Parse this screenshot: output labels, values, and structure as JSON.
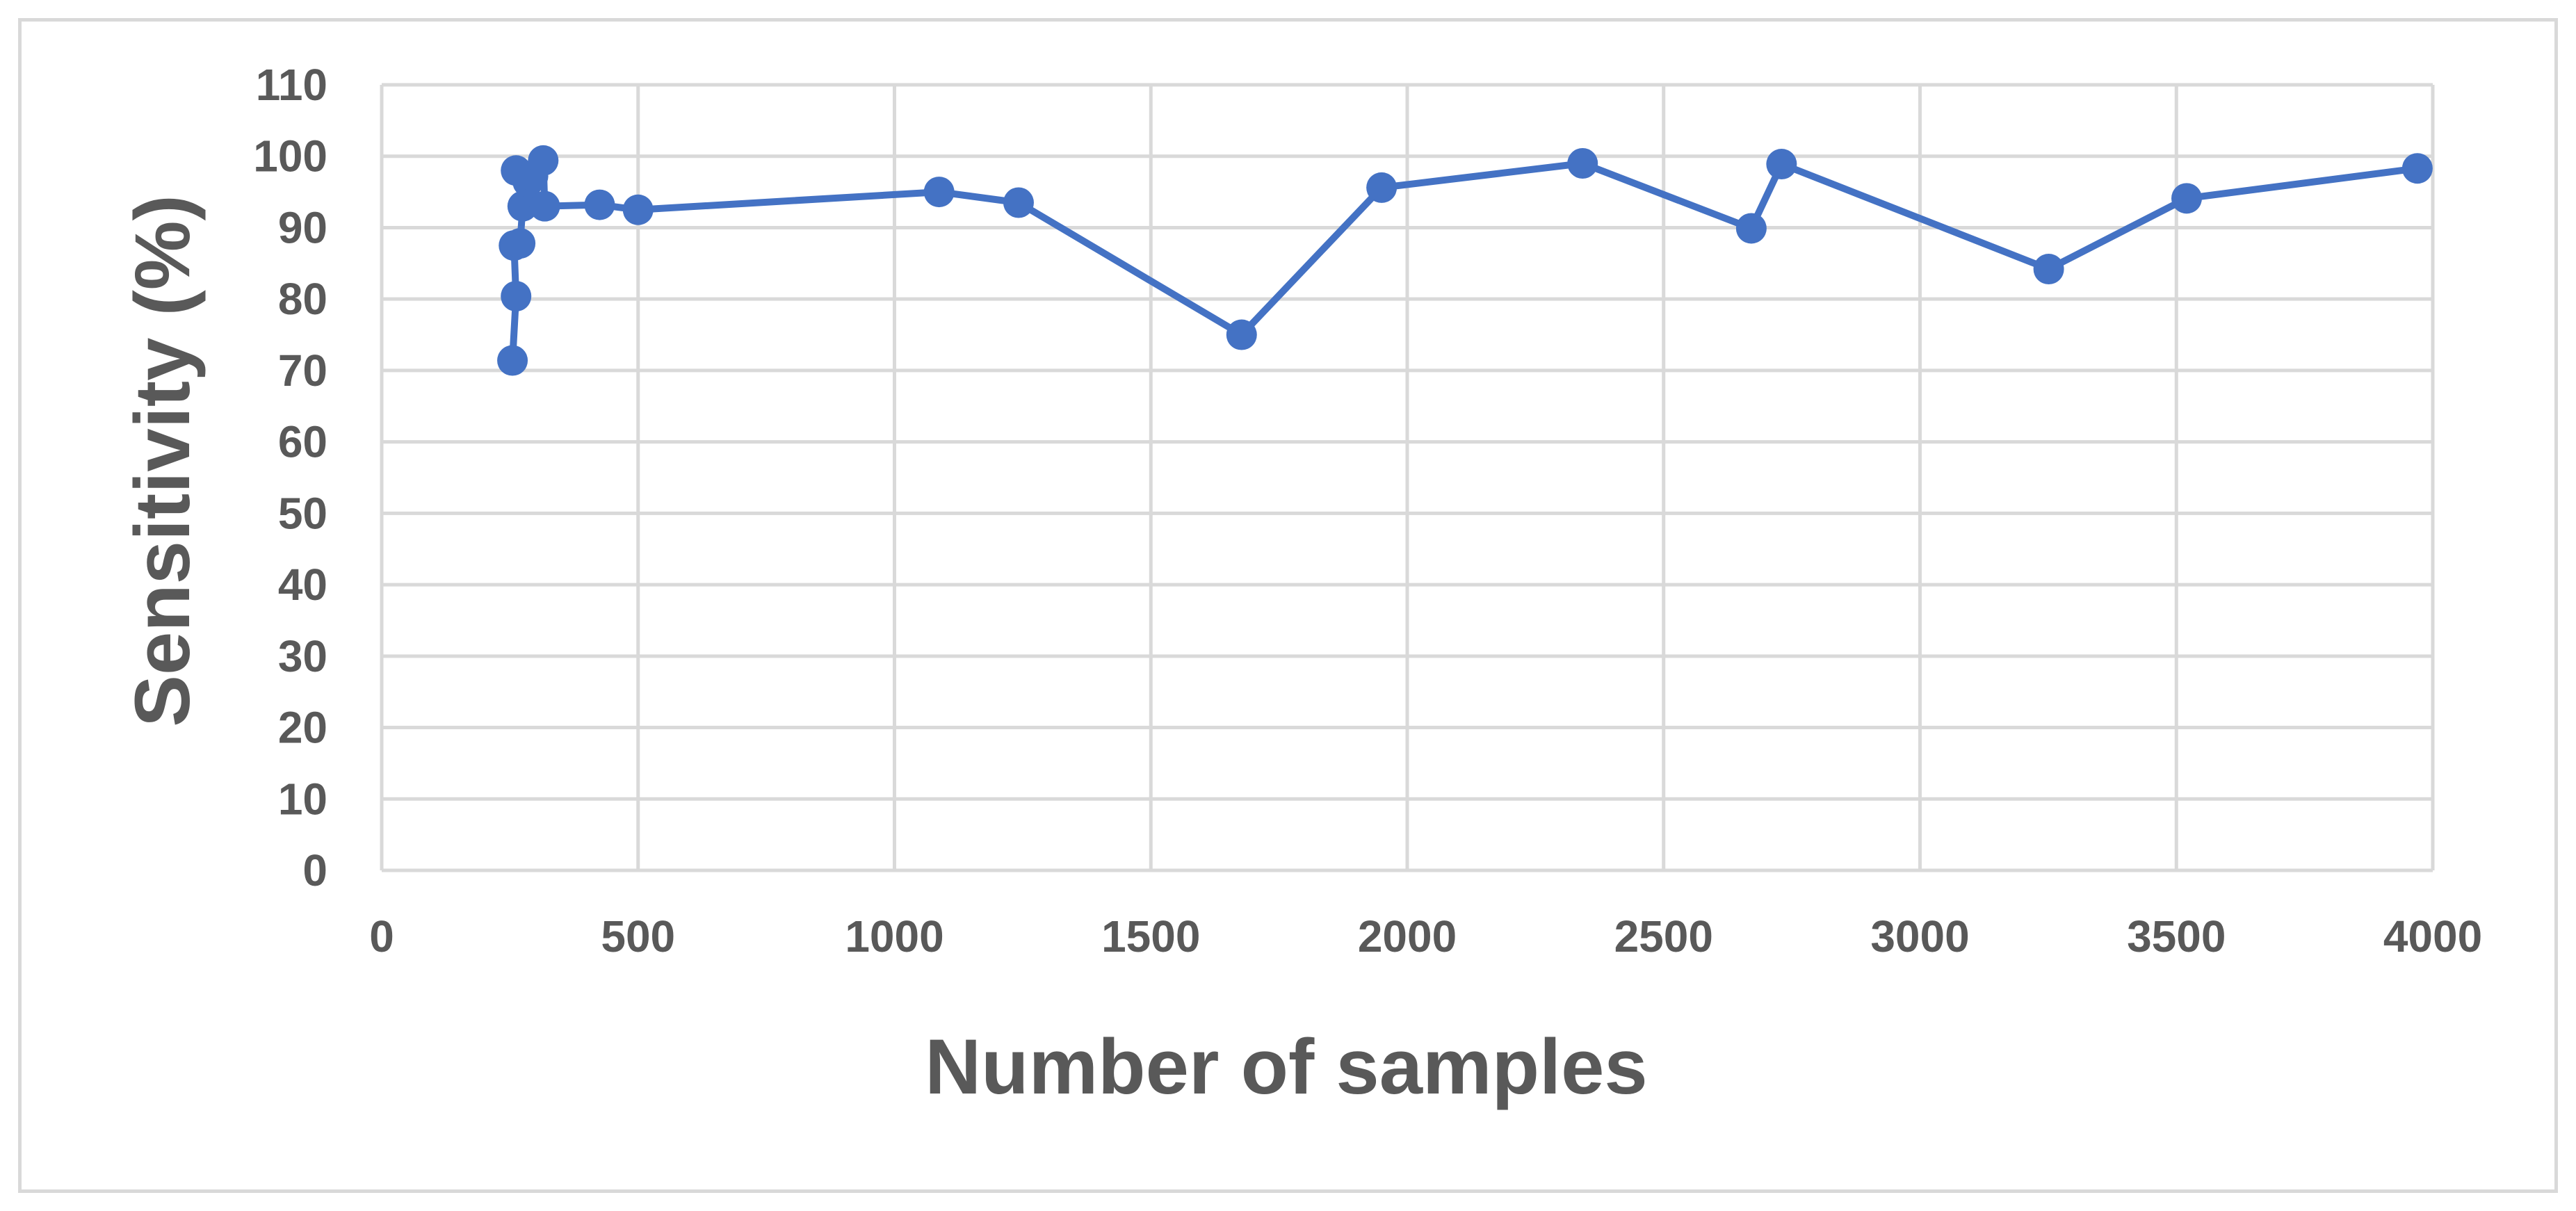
{
  "chart_data": {
    "type": "line",
    "title": "",
    "xlabel": "Number of samples",
    "ylabel": "Sensitivity (%)",
    "xlim": [
      0,
      4000
    ],
    "ylim": [
      0,
      110
    ],
    "x_ticks": [
      0,
      500,
      1000,
      1500,
      2000,
      2500,
      3000,
      3500,
      4000
    ],
    "y_ticks": [
      0,
      10,
      20,
      30,
      40,
      50,
      60,
      70,
      80,
      90,
      100,
      110
    ],
    "grid": true,
    "legend": "none",
    "markers": true,
    "series": [
      {
        "color": "#4472c4",
        "points": [
          {
            "x": 255,
            "y": 71.4
          },
          {
            "x": 262,
            "y": 80.4
          },
          {
            "x": 258,
            "y": 87.5
          },
          {
            "x": 270,
            "y": 87.8
          },
          {
            "x": 275,
            "y": 93.0
          },
          {
            "x": 285,
            "y": 96.4
          },
          {
            "x": 262,
            "y": 98.0
          },
          {
            "x": 295,
            "y": 97.2
          },
          {
            "x": 315,
            "y": 99.4
          },
          {
            "x": 318,
            "y": 93.0
          },
          {
            "x": 425,
            "y": 93.2
          },
          {
            "x": 500,
            "y": 92.5
          },
          {
            "x": 1087,
            "y": 95.0
          },
          {
            "x": 1242,
            "y": 93.5
          },
          {
            "x": 1677,
            "y": 75.0
          },
          {
            "x": 1950,
            "y": 95.6
          },
          {
            "x": 2342,
            "y": 99.0
          },
          {
            "x": 2671,
            "y": 89.9
          },
          {
            "x": 2730,
            "y": 98.9
          },
          {
            "x": 3251,
            "y": 84.2
          },
          {
            "x": 3520,
            "y": 94.1
          },
          {
            "x": 3970,
            "y": 98.3
          }
        ]
      }
    ]
  }
}
